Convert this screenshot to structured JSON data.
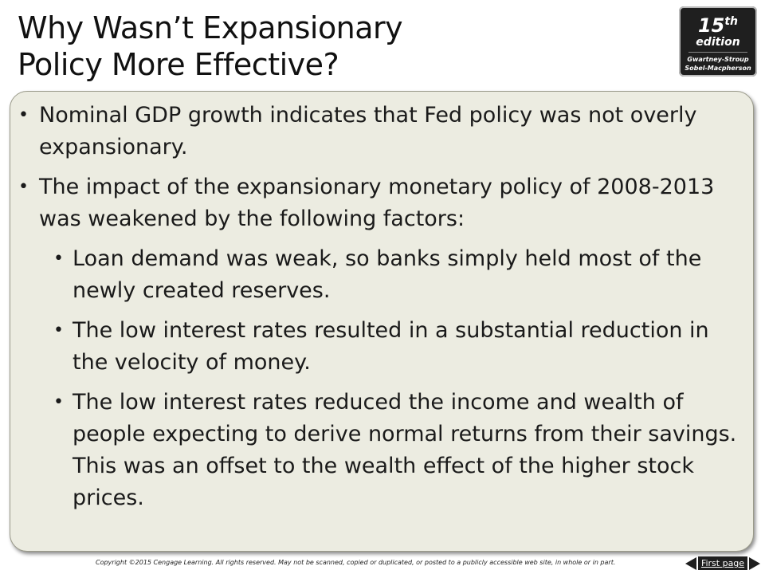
{
  "title": {
    "line1": "Why Wasn’t Expansionary",
    "line2": "Policy More Effective?"
  },
  "badge": {
    "number": "15",
    "suffix": "th",
    "edition": "edition",
    "authors_line1": "Gwartney-Stroup",
    "authors_line2": "Sobel-Macpherson"
  },
  "bullets": [
    {
      "level": 1,
      "text": "Nominal GDP growth indicates that Fed policy was not overly expansionary."
    },
    {
      "level": 1,
      "text": "The impact of the expansionary monetary policy of 2008-2013 was weakened by the following factors:"
    },
    {
      "level": 2,
      "text": "Loan demand was weak, so banks simply held most of the newly created reserves."
    },
    {
      "level": 2,
      "text": "The low interest rates resulted in a substantial reduction in the velocity of money."
    },
    {
      "level": 2,
      "text": "The low interest rates reduced the income and wealth of people expecting to derive normal returns from their savings. This was an offset to the wealth effect of the higher stock prices."
    }
  ],
  "footer": {
    "copyright": "Copyright ©2015 Cengage Learning. All rights reserved. May not be scanned, copied or duplicated, or posted to a publicly accessible web site, in whole or in part.",
    "first_page_label": "First page"
  }
}
